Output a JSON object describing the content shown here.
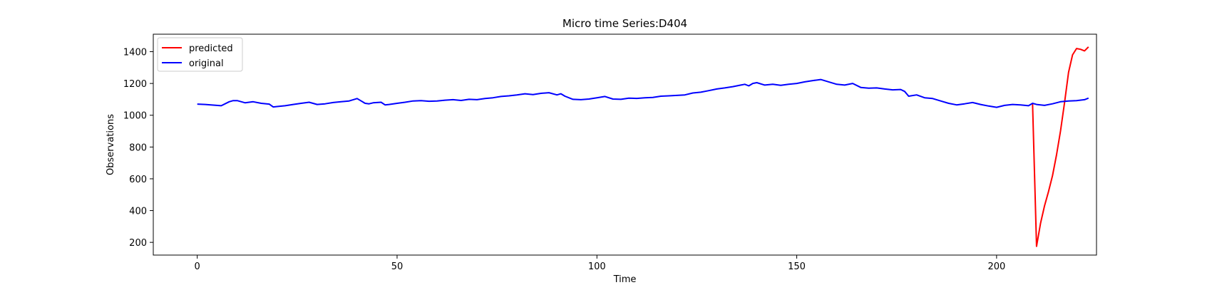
{
  "chart_data": {
    "type": "line",
    "title": "Micro time Series:D404",
    "xlabel": "Time",
    "ylabel": "Observations",
    "xlim": [
      -11,
      225
    ],
    "ylim": [
      120,
      1510
    ],
    "xticks": [
      0,
      50,
      100,
      150,
      200
    ],
    "yticks": [
      200,
      400,
      600,
      800,
      1000,
      1200,
      1400
    ],
    "grid": false,
    "legend_position": "top-left",
    "series": [
      {
        "name": "predicted",
        "color": "#ff0000",
        "x": [
          209,
          210,
          211,
          212,
          213,
          214,
          215,
          216,
          217,
          218,
          219,
          220,
          221,
          222,
          223
        ],
        "values": [
          1075,
          175,
          320,
          430,
          520,
          620,
          750,
          900,
          1080,
          1270,
          1380,
          1420,
          1415,
          1405,
          1430
        ]
      },
      {
        "name": "original",
        "color": "#0000ff",
        "x": [
          0,
          2,
          4,
          6,
          8,
          9,
          10,
          12,
          14,
          16,
          18,
          19,
          20,
          22,
          24,
          26,
          28,
          30,
          32,
          34,
          36,
          38,
          40,
          42,
          43,
          44,
          46,
          47,
          48,
          50,
          52,
          54,
          56,
          58,
          60,
          62,
          64,
          66,
          68,
          70,
          72,
          74,
          76,
          78,
          80,
          82,
          84,
          86,
          88,
          90,
          91,
          92,
          94,
          96,
          98,
          100,
          102,
          104,
          106,
          108,
          110,
          112,
          114,
          116,
          118,
          120,
          122,
          124,
          126,
          128,
          130,
          132,
          134,
          136,
          137,
          138,
          139,
          140,
          142,
          144,
          146,
          148,
          150,
          152,
          154,
          156,
          158,
          160,
          162,
          164,
          166,
          168,
          170,
          172,
          174,
          176,
          177,
          178,
          180,
          182,
          184,
          186,
          188,
          190,
          192,
          194,
          196,
          198,
          200,
          202,
          204,
          206,
          208,
          209,
          210,
          212,
          214,
          216,
          218,
          220,
          222,
          223
        ],
        "values": [
          1070,
          1068,
          1064,
          1060,
          1085,
          1092,
          1092,
          1078,
          1085,
          1075,
          1070,
          1052,
          1055,
          1060,
          1068,
          1075,
          1082,
          1068,
          1072,
          1080,
          1085,
          1090,
          1105,
          1075,
          1072,
          1078,
          1082,
          1065,
          1068,
          1075,
          1082,
          1090,
          1092,
          1088,
          1090,
          1095,
          1098,
          1093,
          1100,
          1098,
          1105,
          1110,
          1118,
          1122,
          1128,
          1135,
          1130,
          1138,
          1142,
          1128,
          1135,
          1120,
          1100,
          1098,
          1102,
          1110,
          1118,
          1102,
          1100,
          1108,
          1106,
          1110,
          1112,
          1120,
          1122,
          1125,
          1128,
          1140,
          1145,
          1155,
          1165,
          1172,
          1180,
          1190,
          1195,
          1185,
          1200,
          1205,
          1190,
          1195,
          1188,
          1195,
          1200,
          1210,
          1218,
          1225,
          1210,
          1195,
          1190,
          1200,
          1175,
          1170,
          1172,
          1165,
          1160,
          1162,
          1150,
          1120,
          1128,
          1110,
          1105,
          1090,
          1075,
          1065,
          1072,
          1080,
          1068,
          1058,
          1050,
          1062,
          1068,
          1065,
          1060,
          1075,
          1068,
          1062,
          1072,
          1085,
          1090,
          1092,
          1098,
          1108
        ]
      }
    ]
  }
}
